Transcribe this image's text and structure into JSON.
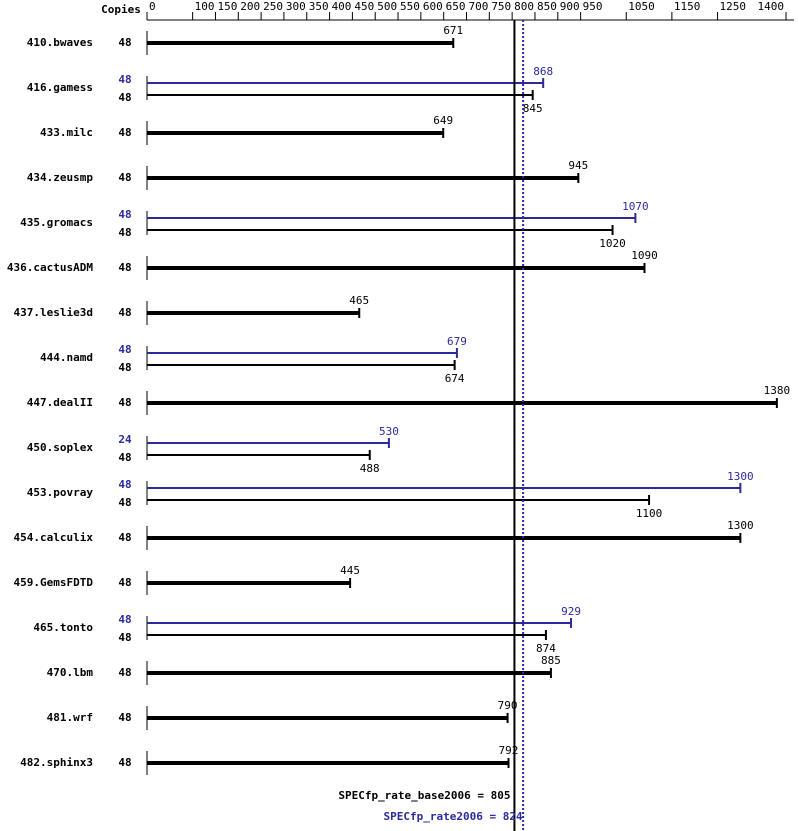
{
  "chart_data": {
    "type": "spec-bar",
    "copies_header": "Copies",
    "categories": [
      "410.bwaves",
      "416.gamess",
      "433.milc",
      "434.zeusmp",
      "435.gromacs",
      "436.cactusADM",
      "437.leslie3d",
      "444.namd",
      "447.dealII",
      "450.soplex",
      "453.povray",
      "454.calculix",
      "459.GemsFDTD",
      "465.tonto",
      "470.lbm",
      "481.wrf",
      "482.sphinx3"
    ],
    "series": [
      {
        "color": "#000000",
        "copies": [
          48,
          48,
          48,
          48,
          48,
          48,
          48,
          48,
          48,
          48,
          48,
          48,
          48,
          48,
          48,
          48,
          48
        ],
        "values": [
          671,
          845,
          649,
          945,
          1020,
          1090,
          465,
          674,
          1380,
          488,
          1100,
          1300,
          445,
          874,
          885,
          790,
          792
        ]
      },
      {
        "color": "#2a2a9c",
        "copies": [
          null,
          48,
          null,
          null,
          48,
          null,
          null,
          48,
          null,
          24,
          48,
          null,
          null,
          48,
          null,
          null,
          null
        ],
        "values": [
          null,
          868,
          null,
          null,
          1070,
          null,
          null,
          679,
          null,
          530,
          1300,
          null,
          null,
          929,
          null,
          null,
          null
        ]
      }
    ],
    "xlim": [
      0,
      1400
    ],
    "xticks": [
      0,
      100,
      150,
      200,
      250,
      300,
      350,
      400,
      450,
      500,
      550,
      600,
      650,
      700,
      750,
      800,
      850,
      900,
      950,
      1050,
      1150,
      1250,
      1400
    ],
    "reference_lines": [
      {
        "value": 805,
        "label": "SPECfp_rate_base2006 = 805",
        "color": "#000000",
        "style": "solid"
      },
      {
        "value": 824,
        "label": "SPECfp_rate2006 = 824",
        "color": "#2a2a9c",
        "style": "dotted"
      }
    ]
  }
}
